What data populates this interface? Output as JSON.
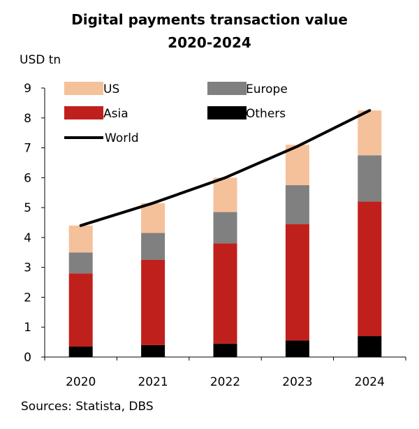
{
  "chart_data": {
    "type": "bar",
    "title": [
      "Digital payments transaction value",
      "2020-2024"
    ],
    "ylabel": "USD tn",
    "xlabel": "",
    "ylim": [
      0,
      9
    ],
    "yticks": [
      0,
      1,
      2,
      3,
      4,
      5,
      6,
      7,
      8,
      9
    ],
    "categories": [
      "2020",
      "2021",
      "2022",
      "2023",
      "2024"
    ],
    "stacked": true,
    "grid": false,
    "legend_position": "top-left inside plot",
    "series": [
      {
        "name": "Others",
        "color": "#000000",
        "values": [
          0.35,
          0.4,
          0.45,
          0.55,
          0.7
        ]
      },
      {
        "name": "Asia",
        "color": "#c0201c",
        "values": [
          2.45,
          2.85,
          3.35,
          3.9,
          4.5
        ]
      },
      {
        "name": "Europe",
        "color": "#808080",
        "values": [
          0.7,
          0.9,
          1.05,
          1.3,
          1.55
        ]
      },
      {
        "name": "US",
        "color": "#f5c19a",
        "values": [
          0.9,
          1.0,
          1.15,
          1.35,
          1.5
        ]
      }
    ],
    "line_series": {
      "name": "World",
      "color": "#000000",
      "values": [
        4.4,
        5.15,
        6.0,
        7.05,
        8.25
      ]
    },
    "legend_order": [
      "US",
      "Europe",
      "Asia",
      "Others",
      "World"
    ]
  },
  "source": "Sources: Statista, DBS"
}
